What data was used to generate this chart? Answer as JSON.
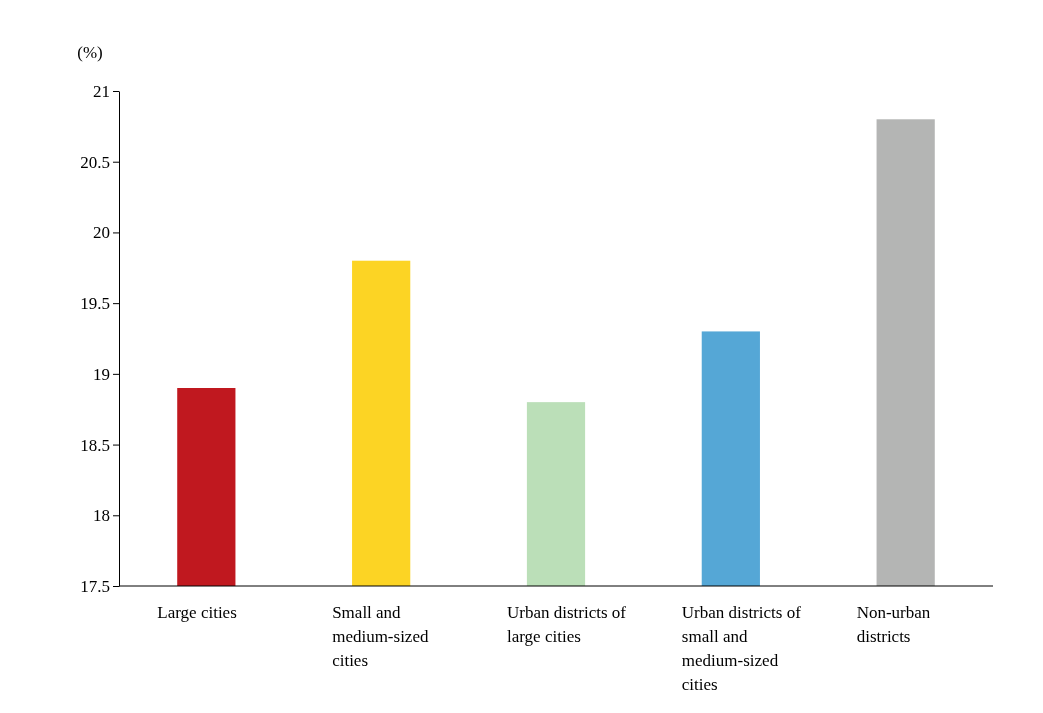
{
  "chart_data": {
    "type": "bar",
    "ylabel": "(%)",
    "categories": [
      "Large cities",
      "Small and medium-sized cities",
      "Urban districts of large cities",
      "Urban districts of small and medium-sized cities",
      "Non-urban districts"
    ],
    "values": [
      18.9,
      19.8,
      18.8,
      19.3,
      20.8
    ],
    "colors": [
      "#c0181f",
      "#fcd424",
      "#bbdfb8",
      "#55a7d6",
      "#b4b5b4"
    ],
    "ylim": [
      17.5,
      21
    ],
    "yticks": [
      17.5,
      18,
      18.5,
      19,
      19.5,
      20,
      20.5,
      21
    ],
    "grid": false
  }
}
